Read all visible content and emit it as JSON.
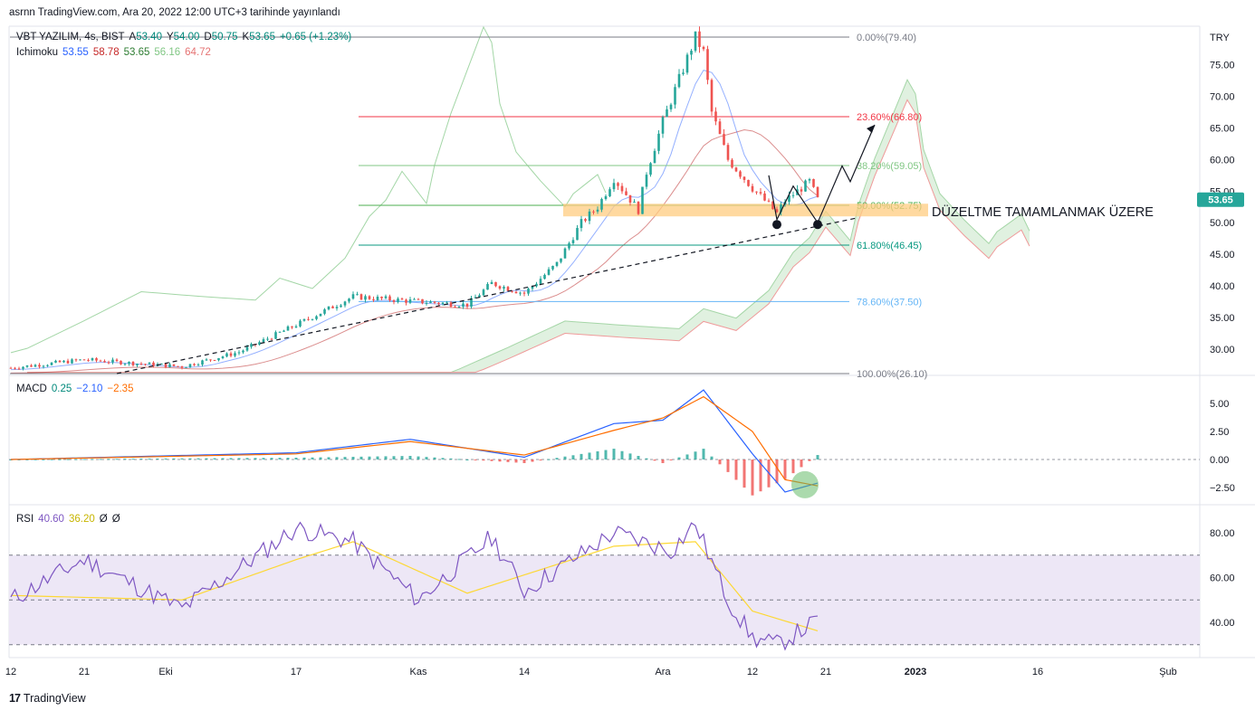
{
  "header": {
    "publisher": "asrnn TradingView.com, Ara 20, 2022 12:00 UTC+3 tarihinde yayınlandı",
    "currency": "TRY"
  },
  "legend": {
    "symbol": "VBT YAZILIM, 4s, BIST",
    "open_label": "A",
    "open": "53.40",
    "high_label": "Y",
    "high": "54.00",
    "low_label": "D",
    "low": "50.75",
    "close_label": "K",
    "close": "53.65",
    "change": "+0.65 (+1.23%)",
    "ichimoku_label": "Ichimoku",
    "ichimoku_values": [
      "53.55",
      "58.78",
      "53.65",
      "56.16",
      "64.72"
    ],
    "macd_label": "MACD",
    "macd_values": [
      "0.25",
      "−2.10",
      "−2.35"
    ],
    "rsi_label": "RSI",
    "rsi_values": [
      "40.60",
      "36.20",
      "Ø",
      "Ø"
    ]
  },
  "annotation": {
    "text": "DÜZELTME TAMAMLANMAK ÜZERE"
  },
  "last_price_badge": "53.65",
  "branding": {
    "logo": "17",
    "name": "TradingView"
  },
  "colors": {
    "up": "#26a69a",
    "down": "#ef5350",
    "tenkan": "#2962ff",
    "kijun": "#b71c1c",
    "chikou": "#43a047",
    "span_a": "#a5d6a7",
    "span_b": "#ef9a9a",
    "macd": "#2962ff",
    "signal": "#ff6d00",
    "rsi": "#7e57c2",
    "rsi_ma": "#fdd835",
    "support_zone": "#ffcc80",
    "rsi_band": "#ede7f6"
  },
  "chart_data": [
    {
      "type": "candlestick",
      "title": "VBT YAZILIM, 4s, BIST",
      "y_unit": "TRY",
      "ylim": [
        26.1,
        82.0
      ],
      "y_ticks": [
        "75.00",
        "70.00",
        "65.00",
        "60.00",
        "55.00",
        "50.00",
        "45.00",
        "40.00",
        "35.00",
        "30.00"
      ],
      "x_ticks": [
        "12",
        "21",
        "Eki",
        "17",
        "Kas",
        "14",
        "Ara",
        "12",
        "21",
        "2023",
        "16",
        "Şub"
      ],
      "close_path": [
        {
          "t": "Sep 12",
          "v": 27.0
        },
        {
          "t": "Sep 21",
          "v": 28.3
        },
        {
          "t": "Oct 3",
          "v": 27.2
        },
        {
          "t": "Oct 10",
          "v": 29.5
        },
        {
          "t": "Oct 17",
          "v": 33.8
        },
        {
          "t": "Oct 24",
          "v": 38.3
        },
        {
          "t": "Oct 31",
          "v": 37.6
        },
        {
          "t": "Nov 7",
          "v": 37.0
        },
        {
          "t": "Nov 10",
          "v": 40.4
        },
        {
          "t": "Nov 14",
          "v": 38.8
        },
        {
          "t": "Nov 18",
          "v": 43.5
        },
        {
          "t": "Nov 21",
          "v": 50.0
        },
        {
          "t": "Nov 23",
          "v": 52.5
        },
        {
          "t": "Nov 25",
          "v": 57.0
        },
        {
          "t": "Nov 28",
          "v": 52.0
        },
        {
          "t": "Nov 29",
          "v": 58.0
        },
        {
          "t": "Dec 1",
          "v": 66.0
        },
        {
          "t": "Dec 5",
          "v": 79.4
        },
        {
          "t": "Dec 6",
          "v": 77.0
        },
        {
          "t": "Dec 7",
          "v": 67.5
        },
        {
          "t": "Dec 9",
          "v": 60.0
        },
        {
          "t": "Dec 12",
          "v": 55.5
        },
        {
          "t": "Dec 15",
          "v": 51.5
        },
        {
          "t": "Dec 16",
          "v": 53.5
        },
        {
          "t": "Dec 19",
          "v": 56.5
        },
        {
          "t": "Dec 20",
          "v": 53.65
        }
      ],
      "fibonacci": [
        {
          "label": "0.00%(79.40)",
          "value": 79.4,
          "color": "#787b86"
        },
        {
          "label": "23.60%(66.80)",
          "value": 66.8,
          "color": "#f23645"
        },
        {
          "label": "38.20%(59.05)",
          "value": 59.05,
          "color": "#81c784"
        },
        {
          "label": "50.00%(52.75)",
          "value": 52.75,
          "color": "#4caf50"
        },
        {
          "label": "61.80%(46.45)",
          "value": 46.45,
          "color": "#089981"
        },
        {
          "label": "78.60%(37.50)",
          "value": 37.5,
          "color": "#64b5f6"
        },
        {
          "label": "100.00%(26.10)",
          "value": 26.1,
          "color": "#787b86"
        }
      ],
      "support_zone": [
        51.0,
        53.0
      ],
      "trendline": [
        {
          "t": "Sep 25",
          "v": 26.1
        },
        {
          "t": "Dec 25",
          "v": 50.8
        }
      ],
      "projection": [
        {
          "t": "Dec 20",
          "v": 50.0
        },
        {
          "t": "Dec 23",
          "v": 59.0
        },
        {
          "t": "Dec 24",
          "v": 56.5
        },
        {
          "t": "Dec 27",
          "v": 65.5
        }
      ]
    },
    {
      "type": "line",
      "title": "MACD",
      "ylim": [
        -3.8,
        6.6
      ],
      "y_ticks": [
        "5.00",
        "2.50",
        "0.00",
        "−2.50"
      ],
      "series": [
        {
          "name": "MACD",
          "values_by_date": [
            {
              "t": "Sep 12",
              "v": 0.0
            },
            {
              "t": "Oct 17",
              "v": 0.6
            },
            {
              "t": "Oct 31",
              "v": 1.8
            },
            {
              "t": "Nov 14",
              "v": 0.2
            },
            {
              "t": "Nov 25",
              "v": 3.2
            },
            {
              "t": "Dec 1",
              "v": 3.5
            },
            {
              "t": "Dec 6",
              "v": 6.2
            },
            {
              "t": "Dec 12",
              "v": 0.5
            },
            {
              "t": "Dec 16",
              "v": -2.9
            },
            {
              "t": "Dec 20",
              "v": -2.1
            }
          ]
        },
        {
          "name": "Signal",
          "values_by_date": [
            {
              "t": "Sep 12",
              "v": 0.0
            },
            {
              "t": "Oct 17",
              "v": 0.5
            },
            {
              "t": "Oct 31",
              "v": 1.6
            },
            {
              "t": "Nov 14",
              "v": 0.4
            },
            {
              "t": "Nov 25",
              "v": 2.6
            },
            {
              "t": "Dec 1",
              "v": 3.7
            },
            {
              "t": "Dec 6",
              "v": 5.6
            },
            {
              "t": "Dec 12",
              "v": 2.5
            },
            {
              "t": "Dec 16",
              "v": -1.8
            },
            {
              "t": "Dec 20",
              "v": -2.35
            }
          ]
        }
      ]
    },
    {
      "type": "line",
      "title": "RSI",
      "ylim": [
        25,
        90
      ],
      "y_ticks": [
        "80.00",
        "60.00",
        "40.00"
      ],
      "bands": [
        30,
        50,
        70
      ],
      "series": [
        {
          "name": "RSI",
          "values_by_date": [
            {
              "t": "Sep 12",
              "v": 50
            },
            {
              "t": "Sep 21",
              "v": 68
            },
            {
              "t": "Oct 3",
              "v": 46
            },
            {
              "t": "Oct 17",
              "v": 82
            },
            {
              "t": "Oct 24",
              "v": 76
            },
            {
              "t": "Nov 1",
              "v": 50
            },
            {
              "t": "Nov 10",
              "v": 78
            },
            {
              "t": "Nov 14",
              "v": 54
            },
            {
              "t": "Nov 25",
              "v": 80
            },
            {
              "t": "Dec 2",
              "v": 72
            },
            {
              "t": "Dec 5",
              "v": 84
            },
            {
              "t": "Dec 9",
              "v": 50
            },
            {
              "t": "Dec 12",
              "v": 33
            },
            {
              "t": "Dec 15",
              "v": 30
            },
            {
              "t": "Dec 20",
              "v": 40.6
            }
          ]
        },
        {
          "name": "RSI MA",
          "values_by_date": [
            {
              "t": "Sep 12",
              "v": 52
            },
            {
              "t": "Oct 3",
              "v": 50
            },
            {
              "t": "Oct 17",
              "v": 68
            },
            {
              "t": "Oct 24",
              "v": 76
            },
            {
              "t": "Nov 7",
              "v": 53
            },
            {
              "t": "Nov 25",
              "v": 74
            },
            {
              "t": "Dec 5",
              "v": 76
            },
            {
              "t": "Dec 12",
              "v": 45
            },
            {
              "t": "Dec 20",
              "v": 36.2
            }
          ]
        }
      ]
    }
  ]
}
